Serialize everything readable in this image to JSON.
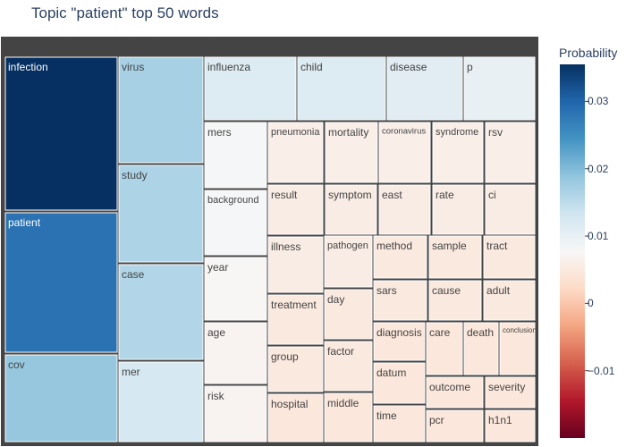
{
  "chart_data": {
    "type": "treemap",
    "title": "Topic \"patient\" top 50 words",
    "colorbar": {
      "title": "Probability",
      "range": [
        -0.02,
        0.0355
      ],
      "ticks": [
        {
          "value": 0.03,
          "label": "0.03"
        },
        {
          "value": 0.02,
          "label": "0.02"
        },
        {
          "value": 0.01,
          "label": "0.01"
        },
        {
          "value": 0,
          "label": "0"
        },
        {
          "value": -0.01,
          "label": "−0.01"
        }
      ],
      "colorscale": [
        "#053061",
        "#2166ac",
        "#4393c3",
        "#92c5de",
        "#d1e5f0",
        "#f7f7f7",
        "#fddbc7",
        "#f4a582",
        "#d6604d",
        "#b2182b",
        "#67001f"
      ]
    },
    "words": [
      {
        "label": "infection",
        "value": 0.0355
      },
      {
        "label": "patient",
        "value": 0.0285
      },
      {
        "label": "cov",
        "value": 0.0185
      },
      {
        "label": "virus",
        "value": 0.017
      },
      {
        "label": "study",
        "value": 0.0165
      },
      {
        "label": "case",
        "value": 0.016
      },
      {
        "label": "mer",
        "value": 0.0125
      },
      {
        "label": "influenza",
        "value": 0.0115
      },
      {
        "label": "child",
        "value": 0.0115
      },
      {
        "label": "disease",
        "value": 0.011
      },
      {
        "label": "p",
        "value": 0.01
      },
      {
        "label": "mers",
        "value": 0.008
      },
      {
        "label": "background",
        "value": 0.008
      },
      {
        "label": "year",
        "value": 0.0075
      },
      {
        "label": "age",
        "value": 0.007
      },
      {
        "label": "risk",
        "value": 0.007
      },
      {
        "label": "pneumonia",
        "value": 0.006
      },
      {
        "label": "mortality",
        "value": 0.006
      },
      {
        "label": "coronavirus",
        "value": 0.006
      },
      {
        "label": "syndrome",
        "value": 0.006
      },
      {
        "label": "rsv",
        "value": 0.006
      },
      {
        "label": "result",
        "value": 0.0055
      },
      {
        "label": "symptom",
        "value": 0.0055
      },
      {
        "label": "east",
        "value": 0.0055
      },
      {
        "label": "rate",
        "value": 0.0055
      },
      {
        "label": "ci",
        "value": 0.0055
      },
      {
        "label": "illness",
        "value": 0.0055
      },
      {
        "label": "pathogen",
        "value": 0.0055
      },
      {
        "label": "method",
        "value": 0.005
      },
      {
        "label": "sample",
        "value": 0.005
      },
      {
        "label": "tract",
        "value": 0.005
      },
      {
        "label": "treatment",
        "value": 0.005
      },
      {
        "label": "day",
        "value": 0.005
      },
      {
        "label": "sars",
        "value": 0.005
      },
      {
        "label": "cause",
        "value": 0.005
      },
      {
        "label": "adult",
        "value": 0.005
      },
      {
        "label": "group",
        "value": 0.005
      },
      {
        "label": "factor",
        "value": 0.005
      },
      {
        "label": "diagnosis",
        "value": 0.0045
      },
      {
        "label": "care",
        "value": 0.0045
      },
      {
        "label": "death",
        "value": 0.0045
      },
      {
        "label": "conclusion",
        "value": 0.0045
      },
      {
        "label": "datum",
        "value": 0.0045
      },
      {
        "label": "outcome",
        "value": 0.0045
      },
      {
        "label": "severity",
        "value": 0.0045
      },
      {
        "label": "hospital",
        "value": 0.0045
      },
      {
        "label": "middle",
        "value": 0.0045
      },
      {
        "label": "time",
        "value": 0.0045
      },
      {
        "label": "pcr",
        "value": 0.0045
      },
      {
        "label": "h1n1",
        "value": 0.0045
      }
    ]
  }
}
